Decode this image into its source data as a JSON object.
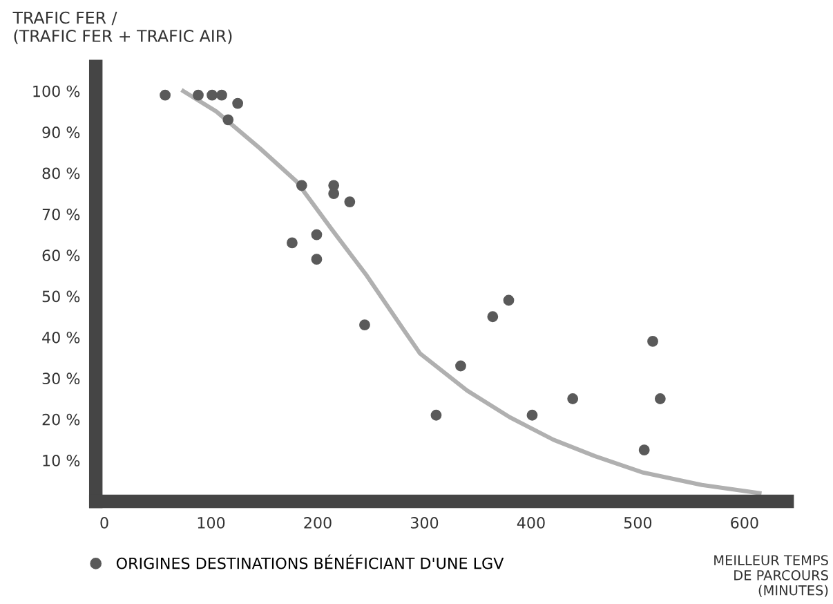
{
  "chart_data": {
    "type": "scatter",
    "title": "TRAFIC FER /\n(TRAFIC FER + TRAFIC AIR)",
    "xlabel": "MEILLEUR TEMPS\nDE PARCOURS\n(MINUTES)",
    "series": [
      {
        "name": "ORIGINES DESTINATIONS BÉNÉFICIANT D'UNE LGV",
        "color": "#5a5a5a",
        "marker": "circle",
        "x": [
          57,
          88,
          101,
          110,
          125,
          116,
          185,
          215,
          215,
          230,
          176,
          199,
          199,
          244,
          311,
          334,
          364,
          379,
          401,
          439,
          506,
          514,
          521
        ],
        "values": [
          99,
          99,
          99,
          99,
          97,
          93,
          77,
          77,
          75,
          73,
          63,
          65,
          59,
          43,
          21,
          33,
          45,
          49,
          21,
          25,
          12.5,
          39,
          25
        ]
      },
      {
        "type": "line",
        "color": "#b0b0b0",
        "line_style": "solid",
        "marker": "none",
        "x": [
          74,
          105,
          146,
          180,
          214,
          246,
          280,
          296,
          340,
          380,
          421,
          460,
          505,
          560,
          614
        ],
        "values": [
          100,
          95,
          86,
          78,
          66,
          55,
          42,
          36,
          27,
          20.5,
          15,
          11,
          7,
          4,
          2
        ]
      }
    ],
    "xlim": [
      -8,
      640
    ],
    "ylim": [
      0,
      106
    ],
    "xticks": [
      0,
      100,
      200,
      300,
      400,
      500,
      600
    ],
    "yticks": [
      {
        "value": 10,
        "label": "10 %"
      },
      {
        "value": 20,
        "label": "20 %"
      },
      {
        "value": 30,
        "label": "30 %"
      },
      {
        "value": 40,
        "label": "40 %"
      },
      {
        "value": 50,
        "label": "50 %"
      },
      {
        "value": 60,
        "label": "60 %"
      },
      {
        "value": 70,
        "label": "70 %"
      },
      {
        "value": 80,
        "label": "80 %"
      },
      {
        "value": 90,
        "label": "90 %"
      },
      {
        "value": 100,
        "label": "100 %"
      }
    ],
    "legend": "bottom left",
    "grid": false
  }
}
